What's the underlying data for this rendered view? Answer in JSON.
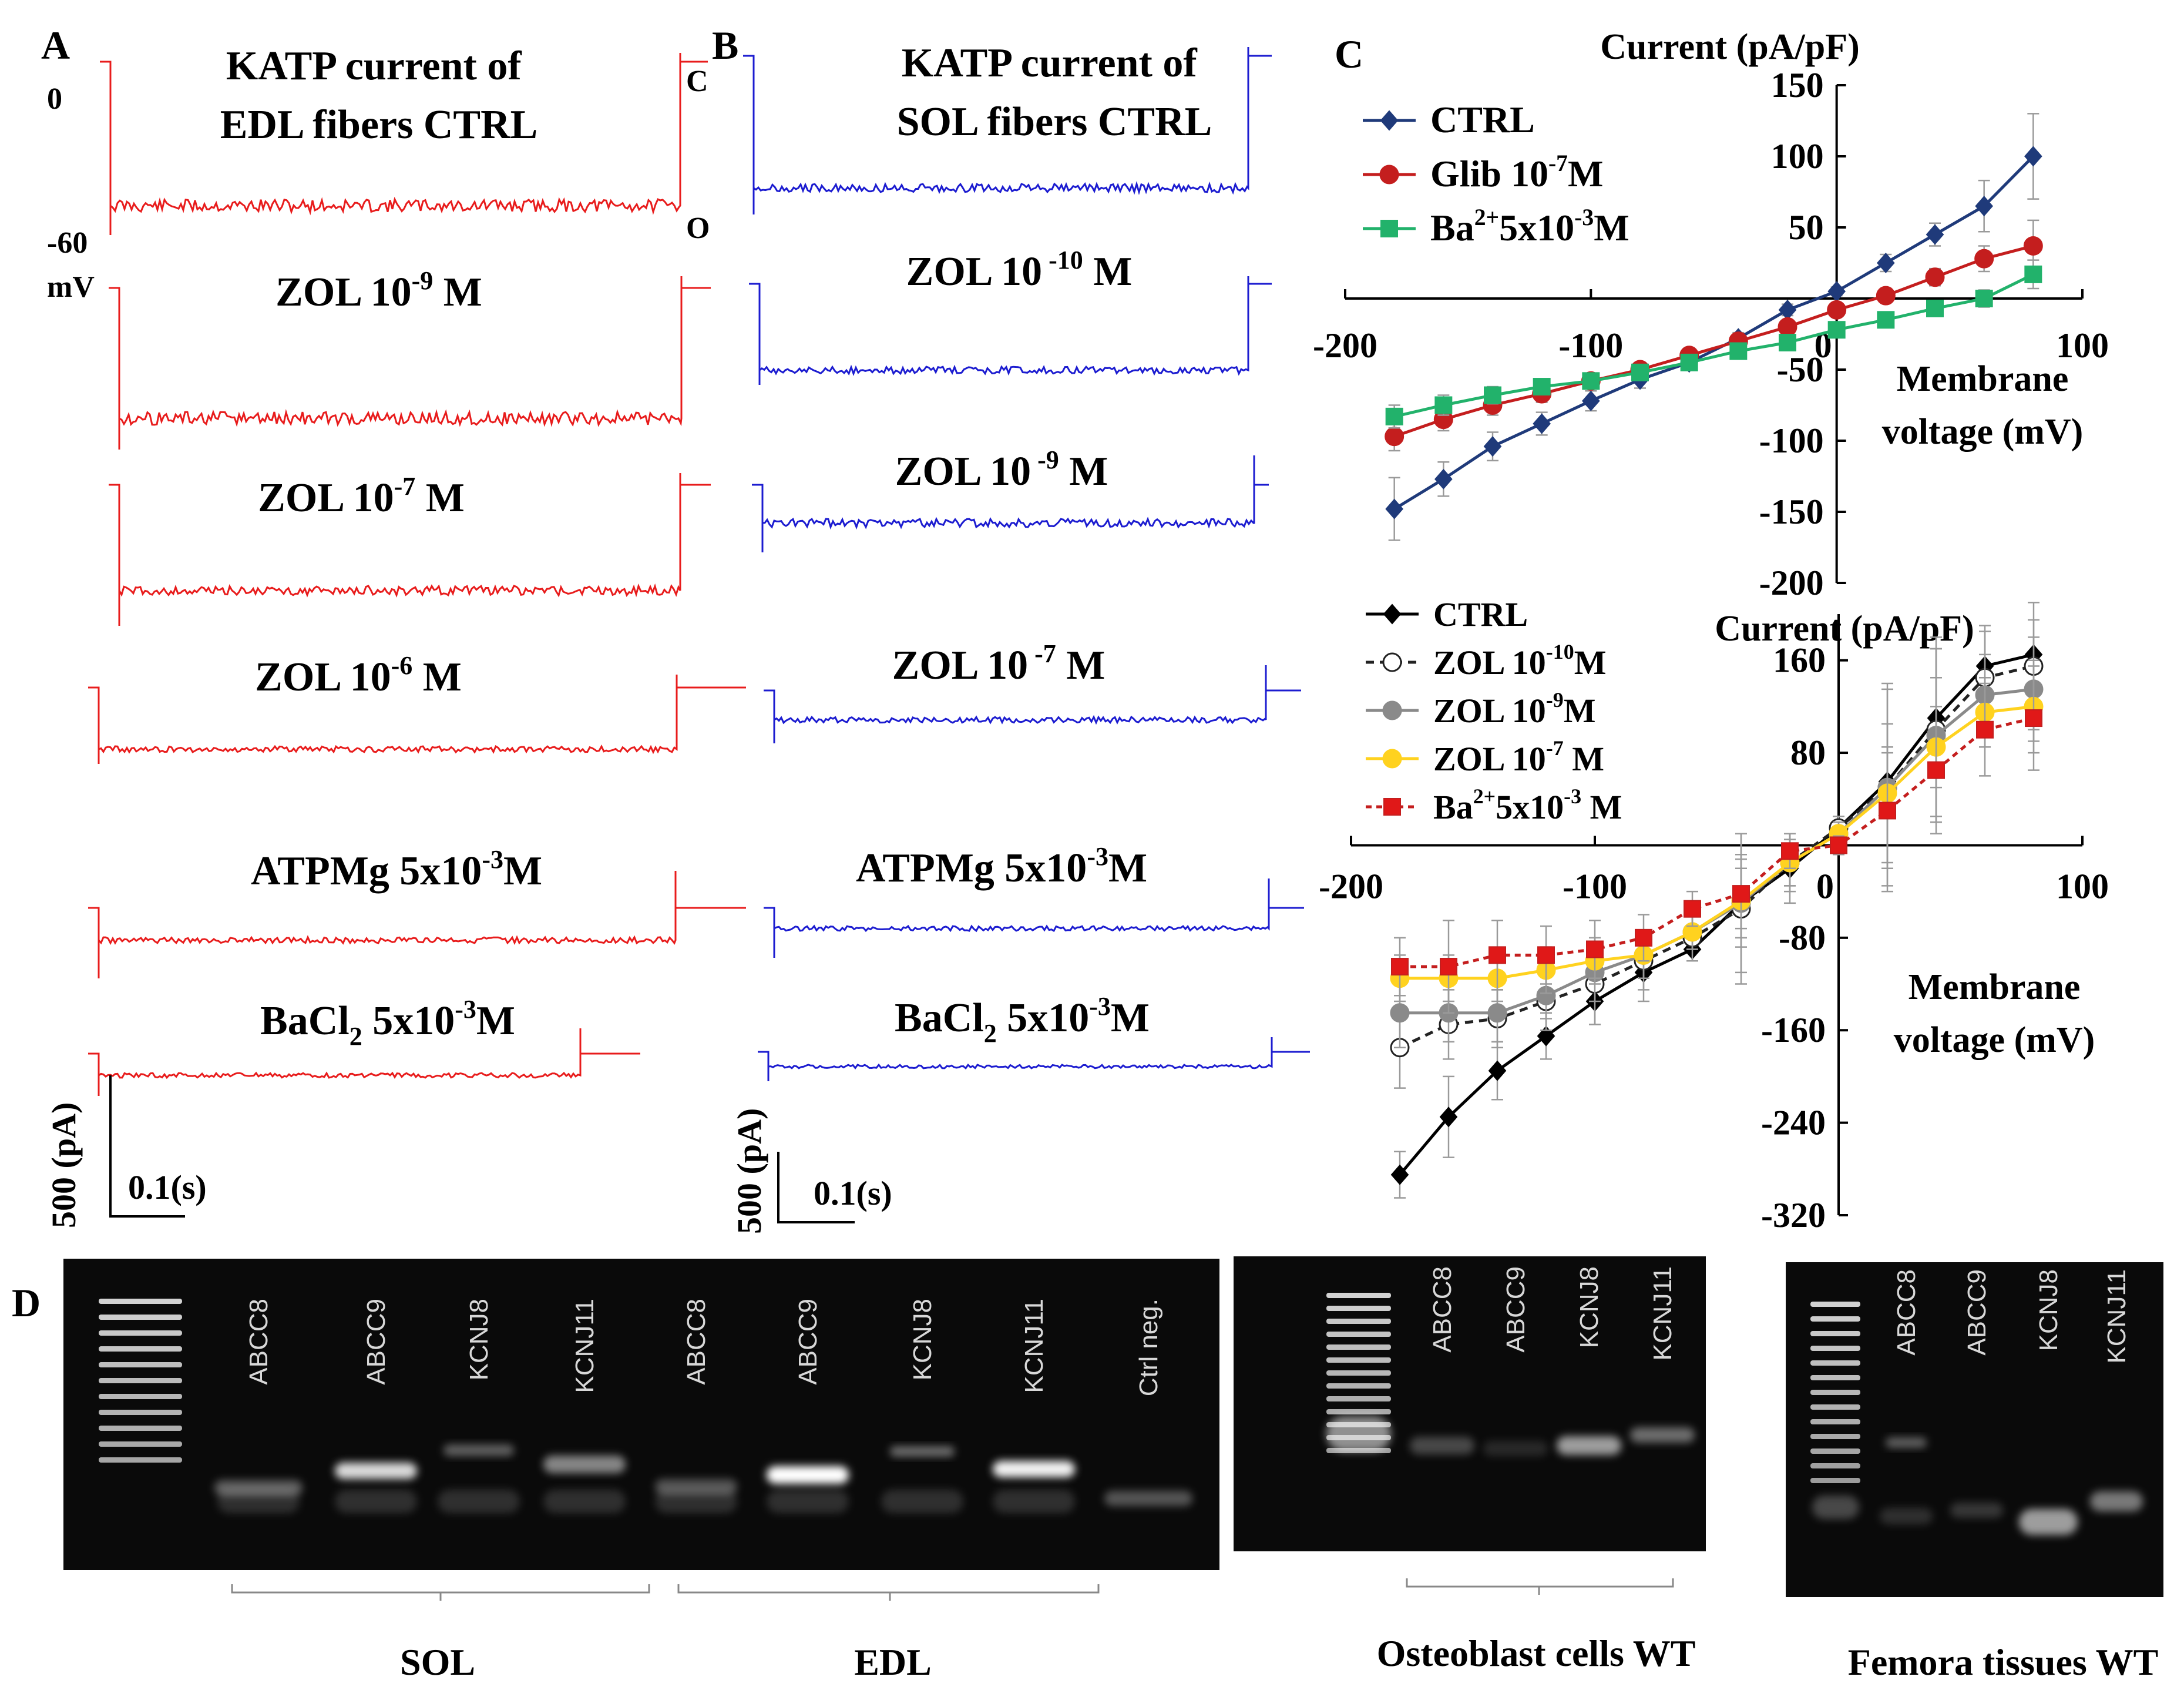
{
  "panels": {
    "A": "A",
    "B": "B",
    "C": "C",
    "D": "D"
  },
  "trace_colors": {
    "edl": "#e81c1c",
    "sol": "#1c1cd0"
  },
  "panel_a": {
    "marks": {
      "zero": "0",
      "minus60": "-60",
      "mv": "mV"
    },
    "labels": [
      "KATP current of",
      "EDL fibers CTRL",
      "ZOL 10",
      "-9",
      " M",
      "ZOL 10",
      "-7",
      " M",
      "ZOL 10",
      "-6",
      " M",
      "ATPMg 5x10",
      "-3",
      "M",
      "BaCl",
      "2",
      " 5x10",
      "-3",
      "M"
    ],
    "scale": {
      "amp": "500 (pA)",
      "time": "0.1(s)"
    }
  },
  "panel_b": {
    "marks": {
      "c": "C",
      "o": "O"
    },
    "labels": [
      "KATP current of",
      "SOL fibers CTRL",
      "ZOL 10",
      " -10",
      " M",
      "ZOL 10",
      " -9",
      " M",
      "ZOL 10",
      " -7",
      " M",
      "ATPMg 5x10",
      "-3",
      "M",
      "BaCl",
      "2",
      " 5x10",
      "-3",
      "M"
    ],
    "scale": {
      "amp": "500 (pA)",
      "time": "0.1(s)"
    }
  },
  "chart_data": [
    {
      "type": "line",
      "ylabel": "Current (pA/pF)",
      "xlabel": "Membrane voltage (mV)",
      "xlim": [
        -200,
        100
      ],
      "ylim": [
        -200,
        150
      ],
      "xticks": [
        "-200",
        "-100",
        "0",
        "100"
      ],
      "yticks": [
        "150",
        "100",
        "50",
        "0",
        "-50",
        "-100",
        "-150",
        "-200"
      ],
      "legend_position": "top-left",
      "x": [
        -180,
        -160,
        -140,
        -120,
        -100,
        -80,
        -60,
        -40,
        -20,
        0,
        20,
        40,
        60,
        80
      ],
      "series": [
        {
          "name": "CTRL",
          "color": "#1f3a7a",
          "marker": "diamond",
          "values": [
            -148,
            -127,
            -104,
            -88,
            -72,
            -57,
            -45,
            -28,
            -8,
            5,
            25,
            45,
            65,
            100
          ],
          "err": [
            22,
            12,
            10,
            8,
            7,
            6,
            5,
            4,
            4,
            3,
            6,
            8,
            18,
            30
          ]
        },
        {
          "name": "Glib 10",
          "sup": "-7",
          "suffix": "M",
          "color": "#c41e1e",
          "marker": "circle",
          "values": [
            -97,
            -85,
            -75,
            -67,
            -58,
            -50,
            -40,
            -30,
            -20,
            -8,
            2,
            15,
            28,
            37
          ],
          "err": [
            10,
            8,
            7,
            6,
            5,
            4,
            4,
            3,
            3,
            3,
            5,
            6,
            9,
            18
          ]
        },
        {
          "name": "Ba",
          "sup": "2+",
          "suffix": "5x10",
          "sup2": "-3",
          "suffix2": "M",
          "color": "#22b26b",
          "marker": "square",
          "values": [
            -83,
            -75,
            -68,
            -62,
            -58,
            -52,
            -45,
            -37,
            -31,
            -22,
            -15,
            -7,
            0,
            17
          ],
          "err": [
            8,
            7,
            6,
            5,
            5,
            4,
            4,
            3,
            3,
            3,
            4,
            5,
            6,
            10
          ]
        }
      ]
    },
    {
      "type": "line",
      "ylabel": "Current (pA/pF)",
      "xlabel": "Membrane voltage (mV)",
      "xlim": [
        -200,
        100
      ],
      "ylim": [
        -320,
        200
      ],
      "xticks": [
        "-200",
        "-100",
        "0",
        "100"
      ],
      "yticks": [
        "160",
        "80",
        "0",
        "-80",
        "-160",
        "-240",
        "-320"
      ],
      "legend_position": "top-left",
      "x": [
        -180,
        -160,
        -140,
        -120,
        -100,
        -80,
        -60,
        -40,
        -20,
        0,
        20,
        40,
        60,
        80
      ],
      "series": [
        {
          "name": "CTRL",
          "color": "#000000",
          "marker": "diamond",
          "fill": "#000000",
          "dash": "",
          "values": [
            -285,
            -235,
            -195,
            -165,
            -135,
            -110,
            -90,
            -50,
            -20,
            15,
            55,
            110,
            155,
            165
          ],
          "err": [
            20,
            35,
            25,
            20,
            20,
            25,
            10,
            30,
            30,
            10,
            30,
            60,
            35,
            30
          ]
        },
        {
          "name": "ZOL 10",
          "sup": "-10",
          "suffix": "M",
          "color": "#222222",
          "marker": "circle",
          "fill": "#ffffff",
          "dash": "14,10",
          "values": [
            -175,
            -155,
            -150,
            -135,
            -120,
            -100,
            -80,
            -55,
            -15,
            15,
            50,
            100,
            145,
            155
          ],
          "err": [
            35,
            30,
            25,
            25,
            35,
            25,
            20,
            65,
            20,
            10,
            90,
            80,
            40,
            55
          ]
        },
        {
          "name": "ZOL 10",
          "sup": "-9",
          "suffix": "M",
          "color": "#8a8a8a",
          "marker": "circle",
          "fill": "#8a8a8a",
          "dash": "",
          "values": [
            -145,
            -145,
            -145,
            -130,
            -110,
            -95,
            -75,
            -50,
            -15,
            10,
            50,
            95,
            130,
            135
          ],
          "err": [
            30,
            25,
            25,
            20,
            25,
            20,
            15,
            60,
            25,
            10,
            85,
            75,
            35,
            45
          ]
        },
        {
          "name": "ZOL 10",
          "sup": "-7",
          "suffix": " M",
          "color": "#ffd21f",
          "marker": "circle",
          "fill": "#ffd21f",
          "dash": "",
          "values": [
            -115,
            -115,
            -115,
            -108,
            -100,
            -95,
            -75,
            -48,
            -15,
            10,
            45,
            85,
            115,
            120
          ],
          "err": [
            20,
            20,
            20,
            20,
            20,
            20,
            15,
            40,
            20,
            10,
            60,
            60,
            30,
            40
          ]
        },
        {
          "name": "Ba",
          "sup": "2+",
          "suffix": "5x10",
          "sup2": "-3",
          "suffix2": " M",
          "color": "#c41e1e",
          "marker": "square",
          "fill": "#e01818",
          "dash": "10,8",
          "values": [
            -105,
            -105,
            -95,
            -95,
            -90,
            -80,
            -55,
            -42,
            -5,
            0,
            30,
            65,
            100,
            110
          ],
          "err": [
            25,
            40,
            30,
            25,
            25,
            20,
            15,
            30,
            15,
            8,
            50,
            55,
            40,
            45
          ]
        }
      ]
    }
  ],
  "panel_d": {
    "gel1": {
      "lanes": [
        "ABCC8",
        "ABCC9",
        "KCNJ8",
        "KCNJ11",
        "ABCC8",
        "ABCC9",
        "KCNJ8",
        "KCNJ11",
        "Ctrl neg."
      ],
      "groups": [
        "SOL",
        "EDL"
      ]
    },
    "gel2": {
      "lanes": [
        "ABCC8",
        "ABCC9",
        "KCNJ8",
        "KCNJ11"
      ],
      "group": "Osteoblast cells WT"
    },
    "gel3": {
      "lanes": [
        "ABCC8",
        "ABCC9",
        "KCNJ8",
        "KCNJ11"
      ],
      "group": "Femora tissues WT"
    }
  }
}
